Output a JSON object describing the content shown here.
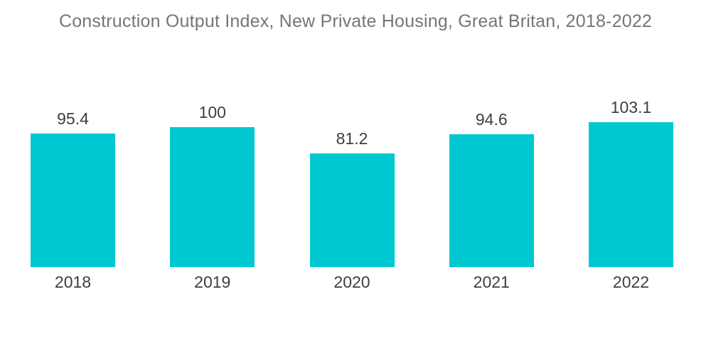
{
  "title": "Construction Output Index, New Private Housing, Great Britan, 2018-2022",
  "colors": {
    "bar": "#00C8D0",
    "title_text": "#737679",
    "label_text": "#3d3e40",
    "background": "#ffffff"
  },
  "chart_data": {
    "type": "bar",
    "title": "Construction Output Index, New Private Housing, Great Britan, 2018-2022",
    "categories": [
      "2018",
      "2019",
      "2020",
      "2021",
      "2022"
    ],
    "values": [
      95.4,
      100,
      81.2,
      94.6,
      103.1
    ],
    "value_labels": [
      "95.4",
      "100",
      "81.2",
      "94.6",
      "103.1"
    ],
    "xlabel": "",
    "ylabel": "",
    "ylim": [
      0,
      110
    ],
    "grid": false,
    "axes_visible": false,
    "legend": null,
    "value_labels_position": "above-bars",
    "bar_color": "#00C8D0"
  }
}
